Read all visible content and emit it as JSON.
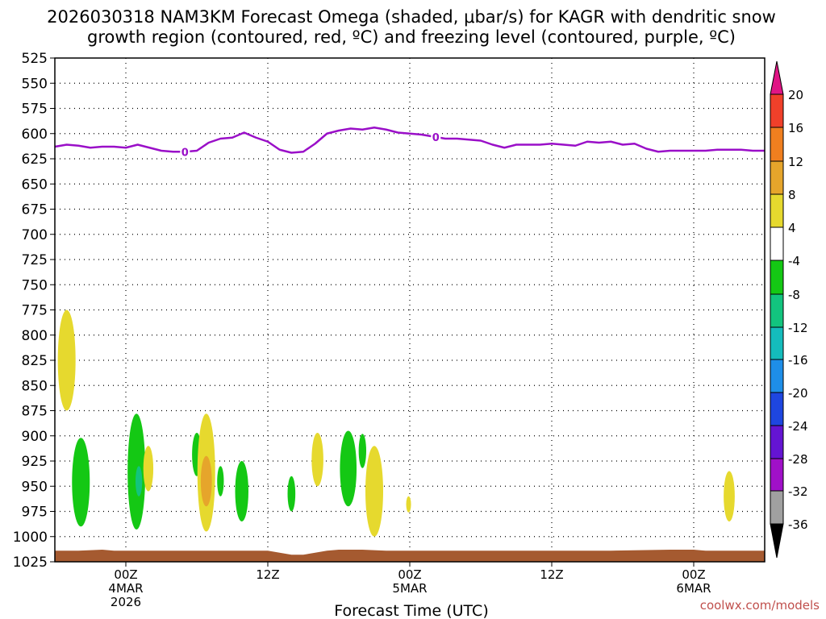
{
  "chart_data": {
    "type": "heatmap",
    "title_lines": [
      "2026030318 NAM3KM Forecast Omega (shaded, μbar/s) for KAGR with dendritic snow",
      "growth region (contoured, red, ºC) and freezing level (contoured, purple, ºC)"
    ],
    "xlabel": "Forecast Time (UTC)",
    "ylabel": "",
    "y_ticks": [
      525,
      550,
      575,
      600,
      625,
      650,
      675,
      700,
      725,
      750,
      775,
      800,
      825,
      850,
      875,
      900,
      925,
      950,
      975,
      1000,
      1025
    ],
    "y_range": [
      525,
      1025
    ],
    "x_range_hours": [
      18,
      78
    ],
    "x_ticks": [
      {
        "hour": 24,
        "lines": [
          "00Z",
          "4MAR",
          "2026"
        ]
      },
      {
        "hour": 36,
        "lines": [
          "12Z"
        ]
      },
      {
        "hour": 48,
        "lines": [
          "00Z",
          "5MAR"
        ]
      },
      {
        "hour": 60,
        "lines": [
          "12Z"
        ]
      },
      {
        "hour": 72,
        "lines": [
          "00Z",
          "6MAR"
        ]
      }
    ],
    "colorbar": {
      "levels": [
        -36,
        -32,
        -28,
        -24,
        -20,
        -16,
        -12,
        -8,
        -4,
        4,
        8,
        12,
        16,
        20
      ],
      "tick_labels": [
        "20",
        "16",
        "12",
        "8",
        "4",
        "-4",
        "-8",
        "-12",
        "-16",
        "-20",
        "-24",
        "-28",
        "-32",
        "-36"
      ],
      "colors": {
        "above_20": "#e01585",
        "16_20": "#f0402a",
        "12_16": "#f07f1f",
        "8_12": "#e6a52b",
        "4_8": "#e6d92e",
        "neutral": "#ffffff",
        "m8_m4": "#14c814",
        "m12_m8": "#12c47e",
        "m16_m12": "#14bcbc",
        "m20_m16": "#1e8ee8",
        "m24_m20": "#1e46e0",
        "m28_m24": "#6414d2",
        "m32_m28": "#a010c8",
        "m36_m32": "#a0a0a0",
        "below_m36": "#000000"
      }
    },
    "freezing_level": {
      "label": "0",
      "color": "#9a0fc8",
      "hours": [
        18,
        19,
        20,
        21,
        22,
        23,
        24,
        25,
        26,
        27,
        28,
        29,
        30,
        31,
        32,
        33,
        34,
        35,
        36,
        37,
        38,
        39,
        40,
        41,
        42,
        43,
        44,
        45,
        46,
        47,
        48,
        49,
        50,
        51,
        52,
        53,
        54,
        55,
        56,
        57,
        58,
        59,
        60,
        61,
        62,
        63,
        64,
        65,
        66,
        67,
        68,
        69,
        70,
        71,
        72,
        73,
        74,
        75,
        76,
        77,
        78
      ],
      "pressure": [
        613,
        611,
        612,
        614,
        613,
        613,
        614,
        611,
        614,
        617,
        618,
        618,
        617,
        609,
        605,
        604,
        599,
        604,
        608,
        616,
        619,
        618,
        610,
        600,
        597,
        595,
        596,
        594,
        596,
        599,
        600,
        601,
        603,
        605,
        605,
        606,
        607,
        611,
        614,
        611,
        611,
        611,
        610,
        611,
        612,
        608,
        609,
        608,
        611,
        610,
        615,
        618,
        617,
        617,
        617,
        617,
        616,
        616,
        616,
        617,
        617
      ],
      "label_positions": [
        {
          "hour": 29.0
        },
        {
          "hour": 50.2
        }
      ]
    },
    "omega_cells": [
      {
        "hour": 19.0,
        "p_top": 775,
        "p_bottom": 875,
        "omega": 5
      },
      {
        "hour": 20.2,
        "p_top": 902,
        "p_bottom": 990,
        "omega": -6
      },
      {
        "hour": 24.9,
        "p_top": 878,
        "p_bottom": 993,
        "omega": -6
      },
      {
        "hour": 25.1,
        "p_top": 930,
        "p_bottom": 960,
        "omega": -10
      },
      {
        "hour": 25.9,
        "p_top": 910,
        "p_bottom": 955,
        "omega": 5
      },
      {
        "hour": 30.0,
        "p_top": 897,
        "p_bottom": 940,
        "omega": -6
      },
      {
        "hour": 30.8,
        "p_top": 878,
        "p_bottom": 995,
        "omega": 5
      },
      {
        "hour": 30.8,
        "p_top": 920,
        "p_bottom": 970,
        "omega": 9
      },
      {
        "hour": 32.0,
        "p_top": 930,
        "p_bottom": 960,
        "omega": -6
      },
      {
        "hour": 33.8,
        "p_top": 925,
        "p_bottom": 985,
        "omega": -6
      },
      {
        "hour": 38.0,
        "p_top": 940,
        "p_bottom": 975,
        "omega": -6
      },
      {
        "hour": 40.2,
        "p_top": 897,
        "p_bottom": 950,
        "omega": 5
      },
      {
        "hour": 42.8,
        "p_top": 895,
        "p_bottom": 970,
        "omega": -6
      },
      {
        "hour": 44.0,
        "p_top": 898,
        "p_bottom": 932,
        "omega": -6
      },
      {
        "hour": 45.0,
        "p_top": 910,
        "p_bottom": 1000,
        "omega": 5
      },
      {
        "hour": 47.9,
        "p_top": 960,
        "p_bottom": 976,
        "omega": 5
      },
      {
        "hour": 75.0,
        "p_top": 935,
        "p_bottom": 985,
        "omega": 5
      }
    ],
    "terrain": {
      "color": "#a55a30",
      "hours": [
        18,
        20,
        22,
        23,
        25,
        30,
        34,
        36,
        37,
        38,
        39,
        40,
        41,
        42,
        44,
        46,
        48,
        50,
        55,
        60,
        65,
        70,
        72,
        73,
        78
      ],
      "pressure": [
        1014,
        1014,
        1013,
        1014,
        1014,
        1014,
        1014,
        1014,
        1016,
        1018,
        1018,
        1016,
        1014,
        1013,
        1013,
        1014,
        1014,
        1014,
        1014,
        1014,
        1014,
        1013,
        1013,
        1014,
        1014
      ]
    }
  },
  "credit": "coolwx.com/models"
}
